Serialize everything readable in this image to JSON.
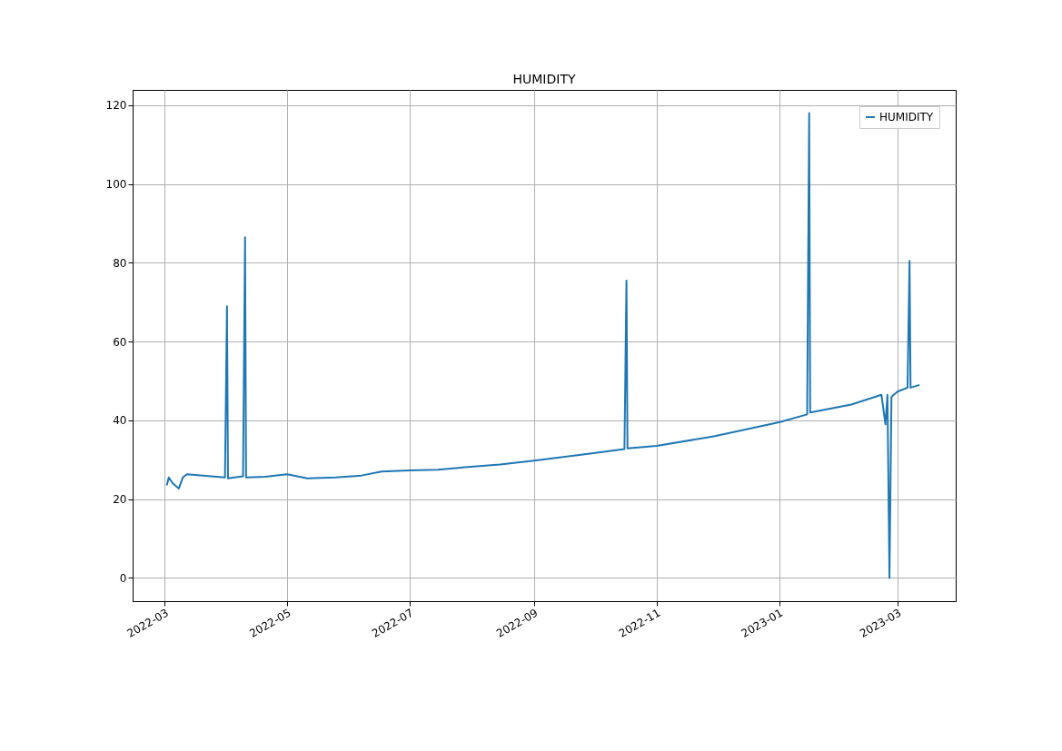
{
  "chart_data": {
    "type": "line",
    "title": "HUMIDITY",
    "x": [
      "2022-03-02",
      "2022-03-03",
      "2022-03-05",
      "2022-03-08",
      "2022-03-10",
      "2022-03-12",
      "2022-03-20",
      "2022-03-31",
      "2022-04-01",
      "2022-04-01T12:00",
      "2022-04-09",
      "2022-04-10",
      "2022-04-10T12:00",
      "2022-04-20",
      "2022-05-01",
      "2022-05-11",
      "2022-05-25",
      "2022-06-07",
      "2022-06-17",
      "2022-07-01",
      "2022-07-15",
      "2022-08-02",
      "2022-08-15",
      "2022-09-01",
      "2022-09-28",
      "2022-10-16",
      "2022-10-17",
      "2022-10-17T12:00",
      "2022-11-01",
      "2022-11-30",
      "2023-01-01",
      "2023-01-15",
      "2023-01-16",
      "2023-01-16T12:00",
      "2023-02-06",
      "2023-02-21",
      "2023-02-23",
      "2023-02-24",
      "2023-02-25",
      "2023-02-26",
      "2023-03-01",
      "2023-03-06",
      "2023-03-07",
      "2023-03-07T12:00",
      "2023-03-12"
    ],
    "series": [
      {
        "name": "HUMIDITY",
        "color": "#1f77b4",
        "values": [
          23.5,
          25.5,
          24,
          22.7,
          25.5,
          26.3,
          26,
          25.5,
          69,
          25.3,
          25.8,
          86.5,
          25.5,
          25.7,
          26.3,
          25.3,
          25.5,
          26,
          27,
          27.3,
          27.5,
          28.3,
          28.8,
          29.8,
          31.5,
          32.7,
          75.5,
          32.9,
          33.5,
          36,
          39.5,
          41.5,
          118,
          42,
          44,
          46.5,
          39,
          46.5,
          0,
          46,
          47.3,
          48.3,
          80.5,
          48.3,
          49
        ]
      }
    ],
    "xlim": [
      "2022-02-13",
      "2023-03-30"
    ],
    "xticks": [
      {
        "value": "2022-03-01",
        "label": "2022-03"
      },
      {
        "value": "2022-05-01",
        "label": "2022-05"
      },
      {
        "value": "2022-07-01",
        "label": "2022-07"
      },
      {
        "value": "2022-09-01",
        "label": "2022-09"
      },
      {
        "value": "2022-11-01",
        "label": "2022-11"
      },
      {
        "value": "2023-01-01",
        "label": "2023-01"
      },
      {
        "value": "2023-03-01",
        "label": "2023-03"
      }
    ],
    "ylim": [
      -5.9,
      123.9
    ],
    "yticks": [
      0,
      20,
      40,
      60,
      80,
      100,
      120
    ],
    "grid": true,
    "legend": "top right"
  }
}
